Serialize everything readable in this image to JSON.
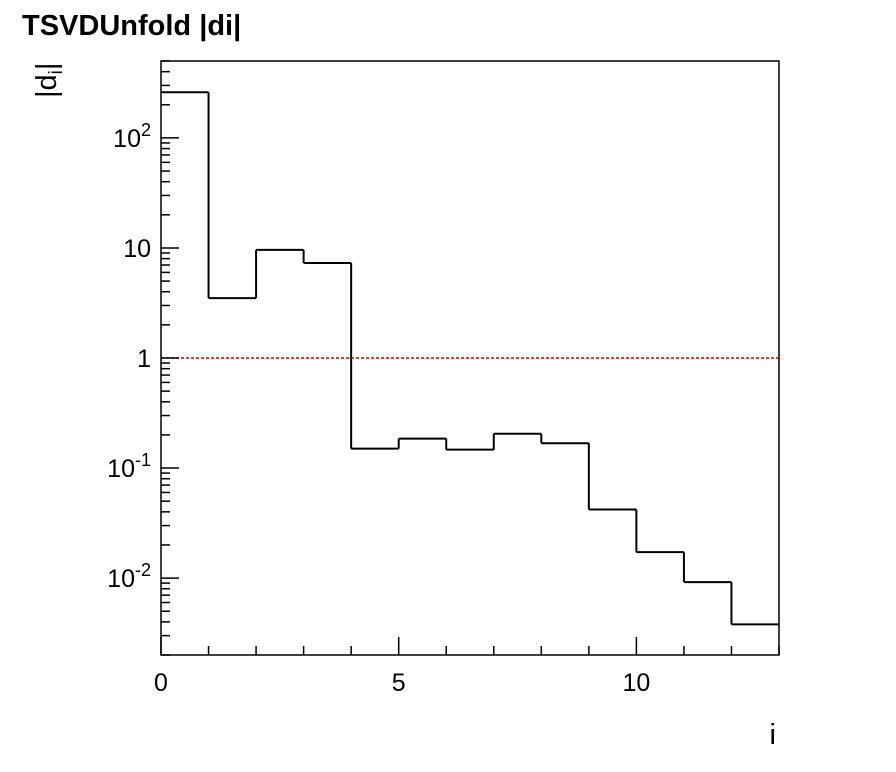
{
  "chart_data": {
    "type": "histogram",
    "title": "TSVDUnfold |di|",
    "xlabel": "i",
    "ylabel": "|d",
    "ylabel_subscript": "i",
    "ylabel_close": "|",
    "x_scale": "linear",
    "y_scale": "log",
    "xlim": [
      0,
      13
    ],
    "ylim": [
      0.002,
      500
    ],
    "x_ticks": [
      0,
      5,
      10
    ],
    "y_ticks": [
      {
        "value": 0.01,
        "base": "10",
        "exp": "-2"
      },
      {
        "value": 0.1,
        "base": "10",
        "exp": "-1"
      },
      {
        "value": 1,
        "base": "1",
        "exp": ""
      },
      {
        "value": 10,
        "base": "10",
        "exp": ""
      },
      {
        "value": 100,
        "base": "10",
        "exp": "2"
      }
    ],
    "bin_edges": [
      0,
      1,
      2,
      3,
      4,
      5,
      6,
      7,
      8,
      9,
      10,
      11,
      12,
      13
    ],
    "values": [
      260,
      3.5,
      9.6,
      7.3,
      0.15,
      0.185,
      0.147,
      0.205,
      0.168,
      0.042,
      0.0172,
      0.0092,
      0.0038
    ],
    "reference_line": {
      "y": 1,
      "color": "#cc0000",
      "style": "dotted"
    },
    "line_color": "#000000",
    "grid": false,
    "legend": "none"
  }
}
